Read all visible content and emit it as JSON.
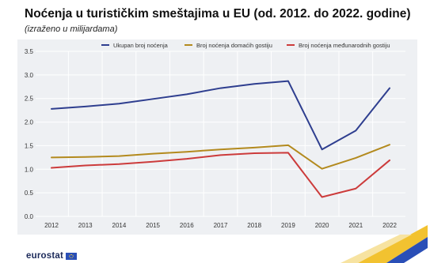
{
  "header": {
    "title": "Noćenja u turističkim smeštajima u EU (od. 2012. do 2022. godine)",
    "subtitle": "(izraženo u milijardama)"
  },
  "footer": {
    "brand": "eurostat"
  },
  "colors": {
    "panel_bg": "#eef0f3",
    "grid": "#ffffff",
    "brand_blue": "#2a4fb7",
    "deco_yellow": "#f2c230",
    "deco_blue": "#2a4fb7"
  },
  "chart_data": {
    "type": "line",
    "title": "Noćenja u turističkim smeštajima u EU (od. 2012. do 2022. godine)",
    "subtitle": "(izraženo u milijardama)",
    "xlabel": "",
    "ylabel": "",
    "categories": [
      "2012",
      "2013",
      "2014",
      "2015",
      "2016",
      "2017",
      "2018",
      "2019",
      "2020",
      "2021",
      "2022"
    ],
    "ylim": [
      0,
      3.5
    ],
    "yticks": [
      0.0,
      0.5,
      1.0,
      1.5,
      2.0,
      2.5,
      3.0,
      3.5
    ],
    "ytick_labels": [
      "0.0",
      "0.5",
      "1.0",
      "1.5",
      "2.0",
      "2.5",
      "3.0",
      "3.5"
    ],
    "grid": true,
    "legend_position": "top-right",
    "series": [
      {
        "name": "Ukupan broj noćenja",
        "color": "#2e3e8f",
        "values": [
          2.28,
          2.33,
          2.39,
          2.49,
          2.59,
          2.72,
          2.81,
          2.87,
          1.42,
          1.82,
          2.72
        ]
      },
      {
        "name": "Broj noćenja domaćih gostiju",
        "color": "#b38a1e",
        "values": [
          1.25,
          1.26,
          1.28,
          1.33,
          1.37,
          1.42,
          1.46,
          1.51,
          1.01,
          1.24,
          1.52
        ]
      },
      {
        "name": "Broj noćenja međunarodnih gostiju",
        "color": "#cc3b3b",
        "values": [
          1.03,
          1.08,
          1.11,
          1.16,
          1.22,
          1.3,
          1.34,
          1.35,
          0.41,
          0.59,
          1.19
        ]
      }
    ]
  }
}
